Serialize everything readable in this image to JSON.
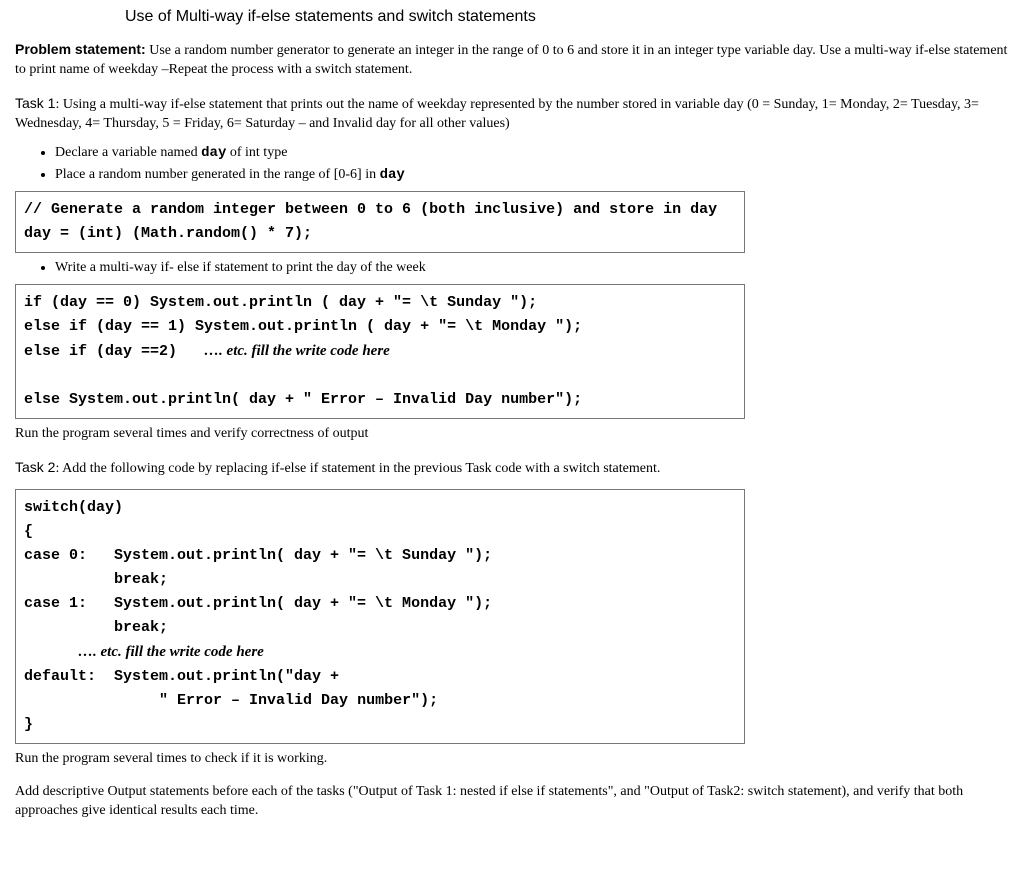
{
  "title": "Use of Multi-way if-else statements and switch statements",
  "problem": {
    "label": "Problem statement:",
    "text": " Use a random number generator to generate an integer in the range of 0 to 6 and store it in an integer type variable day. Use a multi-way if-else statement to print name of weekday –Repeat the process with a switch statement."
  },
  "task1": {
    "label": "Task 1",
    "text": ": Using a multi-way if-else statement that prints out the name of weekday represented by the number stored in variable day (0 = Sunday, 1= Monday, 2= Tuesday, 3= Wednesday, 4= Thursday, 5 = Friday, 6= Saturday – and Invalid day for all other values)",
    "bullet1a": "Declare a variable named ",
    "bullet1b": "day",
    "bullet1c": " of int type",
    "bullet2a": "Place a random number generated in the range of [0-6] in ",
    "bullet2b": "day",
    "code1": "// Generate a random integer between 0 to 6 (both inclusive) and store in day\nday = (int) (Math.random() * 7);",
    "bullet3": "Write a multi-way if- else if statement to print the day of the week",
    "code2_l1": "if (day == 0) System.out.println ( day + \"= \\t Sunday \");",
    "code2_l2": "else if (day == 1) System.out.println ( day + \"= \\t Monday \");",
    "code2_l3a": "else if (day ==2)   ",
    "code2_l3b": "…. etc. fill the write code here",
    "code2_l4": "",
    "code2_l5": "else System.out.println( day + \" Error – Invalid Day number\");",
    "after1": "Run the program several times and verify correctness of output"
  },
  "task2": {
    "label": "Task 2",
    "text": ": Add the following code by replacing if-else if statement in the previous Task code with a switch statement.",
    "code_l1": "switch(day)",
    "code_l2": "{",
    "code_l3": "case 0:   System.out.println( day + \"= \\t Sunday \");",
    "code_l4": "          break;",
    "code_l5": "case 1:   System.out.println( day + \"= \\t Monday \");",
    "code_l6": "          break;",
    "code_l7a": "      ",
    "code_l7b": "…. etc. fill the write code here",
    "code_l8": "default:  System.out.println(\"day +",
    "code_l9": "               \" Error – Invalid Day number\");",
    "code_l10": "}",
    "after": "Run the program several times to check if it is working.",
    "closing": "Add descriptive Output statements before each of the tasks (\"Output of Task 1: nested if else if statements\", and \"Output of Task2:  switch statement), and verify that both approaches give identical results each time."
  }
}
